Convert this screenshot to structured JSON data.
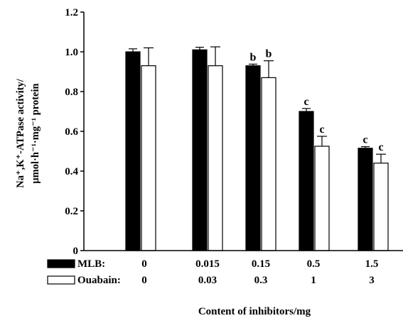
{
  "chart_data": {
    "type": "bar",
    "title": "",
    "ylabel_line1": "Na⁺,K⁺-ATPase activity/",
    "ylabel_line2": "μmol·h⁻¹·mg⁻¹ protein",
    "xlabel": "Content of inhibitors/mg",
    "ylim": [
      0,
      1.2
    ],
    "yticks": [
      "0",
      "0.2",
      "0.4",
      "0.6",
      "0.8",
      "1.0",
      "1.2"
    ],
    "grid": false,
    "series": [
      {
        "name": "MLB:",
        "color": "#000000",
        "dose_labels": [
          "0",
          "0.015",
          "0.15",
          "0.5",
          "1.5"
        ],
        "values": [
          1.0,
          1.01,
          0.93,
          0.7,
          0.515
        ],
        "errors": [
          0.015,
          0.013,
          0.008,
          0.015,
          0.008
        ],
        "significance": [
          "",
          "",
          "b",
          "c",
          "c"
        ]
      },
      {
        "name": "Ouabain:",
        "color": "#ffffff",
        "dose_labels": [
          "0",
          "0.03",
          "0.3",
          "1",
          "3"
        ],
        "values": [
          0.93,
          0.93,
          0.87,
          0.525,
          0.44
        ],
        "errors": [
          0.09,
          0.095,
          0.085,
          0.05,
          0.045
        ],
        "significance": [
          "",
          "",
          "b",
          "c",
          "c"
        ]
      }
    ]
  }
}
